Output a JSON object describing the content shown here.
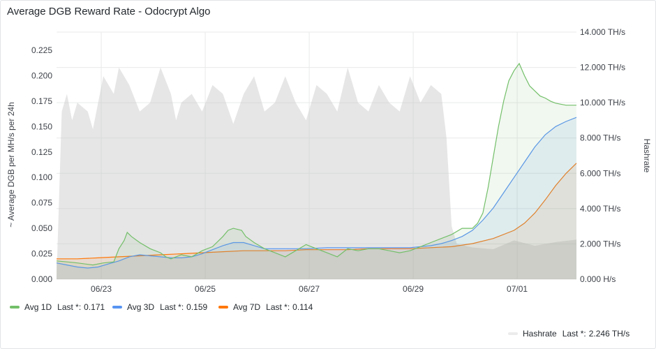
{
  "panel": {
    "title": "Average DGB Reward Rate - Odocrypt Algo"
  },
  "chart_data": {
    "type": "line",
    "title": "Average DGB Reward Rate - Odocrypt Algo",
    "ylabel": "~ Average DGB per MH/s per 24h",
    "y2label": "Hashrate",
    "xlim_days": [
      0,
      5.0
    ],
    "x_ticks": [
      {
        "day": 0.43,
        "label": "06/23"
      },
      {
        "day": 1.43,
        "label": "06/25"
      },
      {
        "day": 2.43,
        "label": "06/27"
      },
      {
        "day": 3.43,
        "label": "06/29"
      },
      {
        "day": 4.43,
        "label": "07/01"
      }
    ],
    "ylim": [
      0,
      0.225
    ],
    "y_ticks": [
      "0.000",
      "0.025",
      "0.050",
      "0.075",
      "0.100",
      "0.125",
      "0.150",
      "0.175",
      "0.200",
      "0.225"
    ],
    "y2lim_ths": [
      0,
      14
    ],
    "y2_ticks": [
      "0.000 H/s",
      "2.000 TH/s",
      "4.000 TH/s",
      "6.000 TH/s",
      "8.000 TH/s",
      "10.000 TH/s",
      "12.000 TH/s",
      "14.000 TH/s"
    ],
    "grid": true,
    "legend_placement": "bottom",
    "series": [
      {
        "name": "Avg 1D",
        "color": "#73bf69",
        "axis": "left",
        "fill": true,
        "last_label": "Last *:",
        "last_value": "0.171",
        "x": [
          0,
          0.1,
          0.2,
          0.35,
          0.45,
          0.55,
          0.6,
          0.65,
          0.68,
          0.72,
          0.8,
          0.9,
          1.0,
          1.05,
          1.1,
          1.2,
          1.3,
          1.4,
          1.5,
          1.6,
          1.65,
          1.7,
          1.78,
          1.82,
          1.9,
          2.0,
          2.1,
          2.2,
          2.3,
          2.4,
          2.5,
          2.6,
          2.7,
          2.8,
          2.9,
          3.0,
          3.1,
          3.2,
          3.3,
          3.4,
          3.5,
          3.6,
          3.7,
          3.8,
          3.9,
          4.0,
          4.05,
          4.1,
          4.15,
          4.2,
          4.25,
          4.3,
          4.35,
          4.4,
          4.45,
          4.5,
          4.55,
          4.6,
          4.65,
          4.7,
          4.75,
          4.8,
          4.85,
          4.9,
          4.95,
          5.0
        ],
        "y": [
          0.018,
          0.017,
          0.016,
          0.014,
          0.016,
          0.017,
          0.03,
          0.038,
          0.046,
          0.042,
          0.036,
          0.03,
          0.026,
          0.022,
          0.02,
          0.024,
          0.022,
          0.028,
          0.032,
          0.042,
          0.048,
          0.05,
          0.048,
          0.042,
          0.036,
          0.03,
          0.026,
          0.022,
          0.028,
          0.034,
          0.03,
          0.026,
          0.022,
          0.03,
          0.028,
          0.03,
          0.03,
          0.028,
          0.026,
          0.028,
          0.032,
          0.036,
          0.04,
          0.044,
          0.05,
          0.05,
          0.055,
          0.065,
          0.09,
          0.12,
          0.15,
          0.175,
          0.195,
          0.205,
          0.212,
          0.2,
          0.19,
          0.185,
          0.18,
          0.178,
          0.175,
          0.173,
          0.172,
          0.171,
          0.171,
          0.171
        ]
      },
      {
        "name": "Avg 3D",
        "color": "#5794f2",
        "axis": "left",
        "fill": true,
        "last_label": "Last *:",
        "last_value": "0.159",
        "x": [
          0,
          0.1,
          0.2,
          0.3,
          0.4,
          0.5,
          0.6,
          0.7,
          0.8,
          0.9,
          1.0,
          1.1,
          1.2,
          1.3,
          1.4,
          1.5,
          1.6,
          1.7,
          1.8,
          1.9,
          2.0,
          2.2,
          2.4,
          2.6,
          2.8,
          3.0,
          3.2,
          3.4,
          3.6,
          3.7,
          3.8,
          3.9,
          4.0,
          4.1,
          4.2,
          4.3,
          4.4,
          4.5,
          4.6,
          4.7,
          4.8,
          4.9,
          5.0
        ],
        "y": [
          0.016,
          0.014,
          0.012,
          0.011,
          0.012,
          0.015,
          0.018,
          0.022,
          0.024,
          0.023,
          0.022,
          0.021,
          0.021,
          0.022,
          0.025,
          0.029,
          0.033,
          0.036,
          0.036,
          0.033,
          0.03,
          0.03,
          0.03,
          0.031,
          0.031,
          0.031,
          0.031,
          0.031,
          0.033,
          0.035,
          0.038,
          0.042,
          0.048,
          0.058,
          0.07,
          0.085,
          0.1,
          0.115,
          0.13,
          0.142,
          0.15,
          0.155,
          0.159
        ]
      },
      {
        "name": "Avg 7D",
        "color": "#ff780a",
        "axis": "left",
        "fill": true,
        "last_label": "Last *:",
        "last_value": "0.114",
        "x": [
          0,
          0.2,
          0.4,
          0.6,
          0.8,
          1.0,
          1.2,
          1.4,
          1.6,
          1.8,
          2.0,
          2.2,
          2.4,
          2.6,
          2.8,
          3.0,
          3.2,
          3.4,
          3.6,
          3.8,
          4.0,
          4.2,
          4.4,
          4.5,
          4.6,
          4.7,
          4.8,
          4.9,
          5.0
        ],
        "y": [
          0.02,
          0.02,
          0.021,
          0.022,
          0.023,
          0.024,
          0.025,
          0.026,
          0.027,
          0.028,
          0.028,
          0.028,
          0.029,
          0.029,
          0.029,
          0.03,
          0.03,
          0.03,
          0.031,
          0.032,
          0.035,
          0.04,
          0.048,
          0.055,
          0.065,
          0.078,
          0.092,
          0.104,
          0.114
        ]
      },
      {
        "name": "Hashrate",
        "color": "#d9d9d9",
        "axis": "right",
        "fill": true,
        "last_label": "Last *:",
        "last_value": "2.246 TH/s",
        "x": [
          0,
          0.05,
          0.1,
          0.15,
          0.2,
          0.3,
          0.35,
          0.45,
          0.55,
          0.6,
          0.7,
          0.8,
          0.9,
          1.0,
          1.1,
          1.15,
          1.2,
          1.3,
          1.4,
          1.5,
          1.6,
          1.7,
          1.8,
          1.9,
          2.0,
          2.1,
          2.2,
          2.3,
          2.4,
          2.5,
          2.6,
          2.7,
          2.8,
          2.9,
          3.0,
          3.1,
          3.2,
          3.3,
          3.4,
          3.5,
          3.6,
          3.7,
          3.75,
          3.8,
          3.85,
          4.0,
          4.2,
          4.4,
          4.6,
          4.8,
          5.0
        ],
        "y": [
          0,
          9.5,
          10.5,
          9.0,
          10.0,
          9.5,
          8.5,
          11.5,
          10.5,
          12.0,
          11.0,
          9.5,
          10.0,
          12.0,
          10.5,
          9.0,
          10.0,
          10.5,
          9.5,
          11.0,
          10.5,
          8.8,
          10.5,
          11.5,
          9.5,
          10.0,
          11.5,
          10.0,
          9.0,
          11.0,
          10.5,
          9.5,
          12.0,
          10.0,
          9.5,
          11.0,
          10.0,
          9.5,
          11.5,
          10.0,
          11.0,
          10.5,
          8.0,
          3.0,
          2.0,
          1.8,
          1.7,
          2.2,
          1.9,
          2.1,
          2.246
        ]
      }
    ]
  }
}
